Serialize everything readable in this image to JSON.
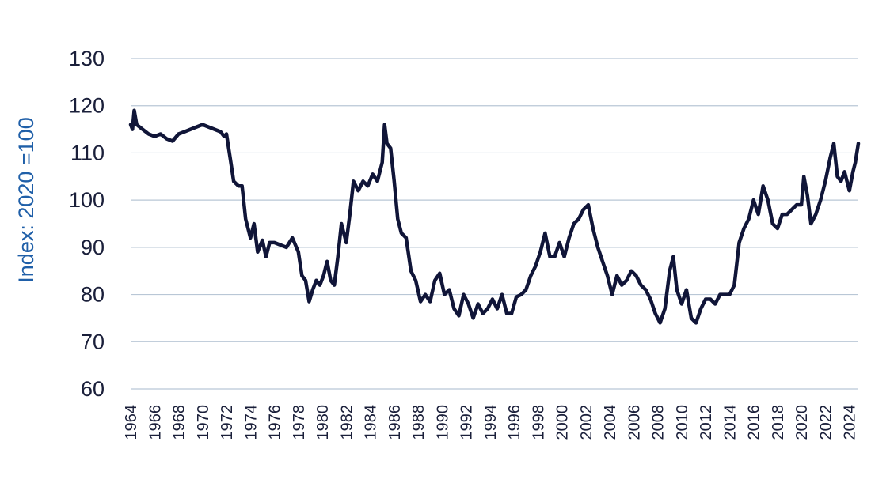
{
  "chart_data": {
    "type": "line",
    "title": "",
    "xlabel": "",
    "ylabel": "Index: 2020 =100",
    "ylim": [
      60,
      130
    ],
    "xlim": [
      1964,
      2024.75
    ],
    "grid": "horizontal",
    "legend": "none",
    "y_ticks": [
      60,
      70,
      80,
      90,
      100,
      110,
      120,
      130
    ],
    "x_ticks": [
      "1964",
      "1966",
      "1968",
      "1970",
      "1972",
      "1974",
      "1976",
      "1978",
      "1980",
      "1982",
      "1984",
      "1986",
      "1988",
      "1990",
      "1992",
      "1994",
      "1996",
      "1998",
      "2000",
      "2002",
      "2004",
      "2006",
      "2008",
      "2010",
      "2012",
      "2014",
      "2016",
      "2018",
      "2020",
      "2022",
      "2024"
    ],
    "colors": {
      "line": "#101538",
      "ylabel": "#1f5fa8",
      "grid": "#b9c7d6",
      "ticks": "#1a1f3a"
    },
    "series": [
      {
        "x": [
          1964.0,
          1964.15,
          1964.3,
          1964.5,
          1964.75,
          1965.0,
          1965.5,
          1966.0,
          1966.5,
          1967.0,
          1967.5,
          1968.0,
          1968.5,
          1969.0,
          1969.5,
          1970.0,
          1970.5,
          1971.0,
          1971.5,
          1971.8,
          1972.0,
          1972.3,
          1972.6,
          1973.0,
          1973.3,
          1973.6,
          1974.0,
          1974.3,
          1974.6,
          1975.0,
          1975.3,
          1975.6,
          1976.0,
          1976.5,
          1977.0,
          1977.5,
          1978.0,
          1978.3,
          1978.6,
          1978.9,
          1979.2,
          1979.5,
          1979.8,
          1980.1,
          1980.4,
          1980.7,
          1981.0,
          1981.3,
          1981.6,
          1982.0,
          1982.3,
          1982.6,
          1983.0,
          1983.4,
          1983.8,
          1984.2,
          1984.6,
          1985.0,
          1985.2,
          1985.4,
          1985.7,
          1986.0,
          1986.3,
          1986.6,
          1987.0,
          1987.4,
          1987.8,
          1988.2,
          1988.6,
          1989.0,
          1989.4,
          1989.8,
          1990.2,
          1990.6,
          1991.0,
          1991.4,
          1991.8,
          1992.2,
          1992.6,
          1993.0,
          1993.4,
          1993.8,
          1994.2,
          1994.6,
          1995.0,
          1995.4,
          1995.8,
          1996.2,
          1996.6,
          1997.0,
          1997.4,
          1997.8,
          1998.2,
          1998.6,
          1999.0,
          1999.4,
          1999.8,
          2000.2,
          2000.6,
          2001.0,
          2001.4,
          2001.8,
          2002.2,
          2002.6,
          2003.0,
          2003.4,
          2003.8,
          2004.2,
          2004.6,
          2005.0,
          2005.4,
          2005.8,
          2006.2,
          2006.6,
          2007.0,
          2007.4,
          2007.8,
          2008.2,
          2008.6,
          2009.0,
          2009.3,
          2009.6,
          2010.0,
          2010.4,
          2010.8,
          2011.2,
          2011.6,
          2012.0,
          2012.4,
          2012.8,
          2013.2,
          2013.6,
          2014.0,
          2014.4,
          2014.8,
          2015.2,
          2015.6,
          2016.0,
          2016.4,
          2016.8,
          2017.2,
          2017.6,
          2018.0,
          2018.4,
          2018.8,
          2019.2,
          2019.6,
          2020.0,
          2020.2,
          2020.5,
          2020.8,
          2021.2,
          2021.6,
          2022.0,
          2022.4,
          2022.7,
          2023.0,
          2023.3,
          2023.6,
          2024.0,
          2024.3,
          2024.5,
          2024.75
        ],
        "values": [
          116,
          115,
          119,
          116,
          115.5,
          115,
          114,
          113.5,
          114,
          113,
          112.5,
          114,
          114.5,
          115,
          115.5,
          116,
          115.5,
          115,
          114.5,
          113.5,
          114,
          109,
          104,
          103,
          103,
          96,
          92,
          95,
          89,
          91.5,
          88,
          91,
          91,
          90.5,
          90,
          92,
          89,
          84,
          83,
          78.5,
          81,
          83,
          82,
          84,
          87,
          83,
          82,
          88,
          95,
          91,
          97,
          104,
          102,
          104,
          103,
          105.5,
          104,
          108,
          116,
          112,
          111,
          104,
          96,
          93,
          92,
          85,
          83,
          78.5,
          80,
          78.5,
          83,
          84.5,
          80,
          81,
          77,
          75.5,
          80,
          78,
          75,
          78,
          76,
          77,
          79,
          77,
          80,
          76,
          76,
          79.5,
          80,
          81,
          84,
          86,
          89,
          93,
          88,
          88,
          91,
          88,
          92,
          95,
          96,
          98,
          99,
          94,
          90,
          87,
          84,
          80,
          84,
          82,
          83,
          85,
          84,
          82,
          81,
          79,
          76,
          74,
          77,
          85,
          88,
          81,
          78,
          81,
          75,
          74,
          77,
          79,
          79,
          78,
          80,
          80,
          80,
          82,
          91,
          94,
          96,
          100,
          97,
          103,
          100,
          95,
          94,
          97,
          97,
          98,
          99,
          99,
          105,
          101,
          95,
          97,
          100,
          104,
          109,
          112,
          105,
          104,
          106,
          102,
          106,
          108,
          112
        ]
      }
    ]
  }
}
